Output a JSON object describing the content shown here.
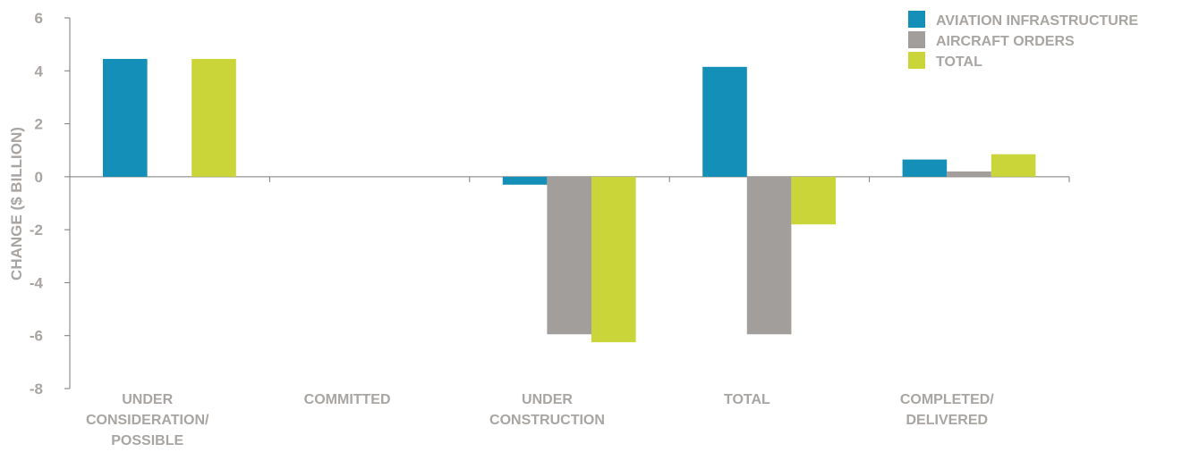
{
  "chart_data": {
    "type": "bar",
    "title": "",
    "xlabel": "",
    "ylabel": "CHANGE ($ BILLION)",
    "ylim": [
      -8,
      6
    ],
    "yticks": [
      6,
      4,
      2,
      0,
      -2,
      -4,
      -6,
      -8
    ],
    "legend_position": "top-right",
    "grid": false,
    "categories": [
      [
        "UNDER",
        "CONSIDERATION/",
        "POSSIBLE"
      ],
      [
        "COMMITTED"
      ],
      [
        "UNDER",
        "CONSTRUCTION"
      ],
      [
        "TOTAL"
      ],
      [
        "COMPLETED/",
        "DELIVERED"
      ]
    ],
    "series": [
      {
        "name": "AVIATION INFRASTRUCTURE",
        "color": "#138fb8",
        "values": [
          4.45,
          0,
          -0.3,
          4.15,
          0.65
        ]
      },
      {
        "name": "AIRCRAFT ORDERS",
        "color": "#a19e9b",
        "values": [
          0,
          0,
          -5.95,
          -5.95,
          0.2
        ]
      },
      {
        "name": "TOTAL",
        "color": "#cad53a",
        "values": [
          4.45,
          0,
          -6.25,
          -1.8,
          0.85
        ]
      }
    ]
  }
}
